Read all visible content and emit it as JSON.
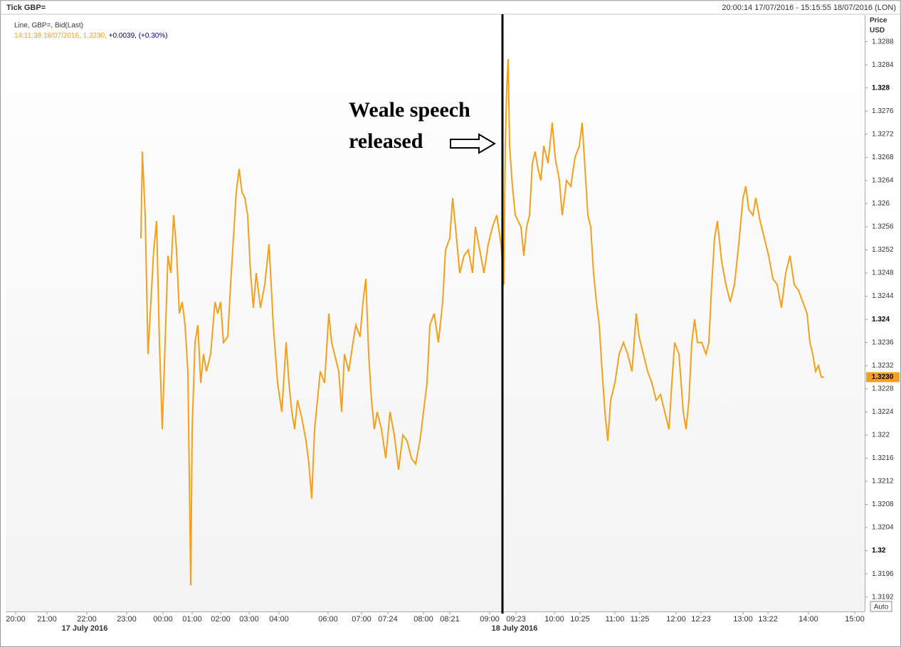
{
  "chart_data": {
    "type": "line",
    "title": "Tick GBP=",
    "subtitle": "20:00:14 17/07/2016 - 15:15:55 18/07/2016 (LON)",
    "y_label": [
      "Price",
      "USD"
    ],
    "info_text": "14:11:38 18/07/2016, 1.3230,",
    "change_text": "+0.0039, (+0.30%)",
    "change_color": "#000080",
    "last_price": {
      "value": 1.323,
      "label": "1.3230"
    },
    "button": "Auto",
    "annotation": {
      "text": [
        "Weale speech",
        "released"
      ],
      "x": 698
    },
    "grid": false,
    "xlim": [
      0,
      1207
    ],
    "ylim": [
      1.31895,
      1.32925
    ],
    "yticks": [
      1.3192,
      1.3196,
      1.32,
      1.3204,
      1.3208,
      1.3212,
      1.3216,
      1.322,
      1.3224,
      1.3228,
      1.3232,
      1.3236,
      1.324,
      1.3244,
      1.3248,
      1.3252,
      1.3256,
      1.326,
      1.3264,
      1.3268,
      1.3272,
      1.3276,
      1.328,
      1.3284,
      1.3288
    ],
    "xticks": [
      {
        "value": 14,
        "label": "20:00"
      },
      {
        "value": 58,
        "label": "21:00"
      },
      {
        "value": 114,
        "label": "22:00"
      },
      {
        "value": 170,
        "label": "23:00"
      },
      {
        "value": 221,
        "label": "00:00"
      },
      {
        "value": 262,
        "label": "01:00"
      },
      {
        "value": 302,
        "label": "02:00"
      },
      {
        "value": 342,
        "label": "03:00"
      },
      {
        "value": 384,
        "label": "04:00"
      },
      {
        "value": 453,
        "label": "06:00"
      },
      {
        "value": 500,
        "label": "07:00"
      },
      {
        "value": 537,
        "label": "07:24"
      },
      {
        "value": 587,
        "label": "08:00"
      },
      {
        "value": 624,
        "label": "08:21"
      },
      {
        "value": 680,
        "label": "09:00"
      },
      {
        "value": 717,
        "label": "09:23"
      },
      {
        "value": 771,
        "label": "10:00"
      },
      {
        "value": 807,
        "label": "10:25"
      },
      {
        "value": 856,
        "label": "11:00"
      },
      {
        "value": 891,
        "label": "11:25"
      },
      {
        "value": 942,
        "label": "12:00"
      },
      {
        "value": 977,
        "label": "12:23"
      },
      {
        "value": 1036,
        "label": "13:00"
      },
      {
        "value": 1071,
        "label": "13:22"
      },
      {
        "value": 1128,
        "label": "14:00"
      },
      {
        "value": 1193,
        "label": "15:00"
      }
    ],
    "date_ticks": [
      {
        "value": 111,
        "label": "17 July 2016"
      },
      {
        "value": 715,
        "label": "18 July 2016"
      }
    ],
    "x": [
      190,
      192,
      196,
      200,
      204,
      208,
      212,
      216,
      220,
      224,
      228,
      232,
      236,
      240,
      244,
      248,
      252,
      256,
      260,
      262,
      266,
      270,
      274,
      278,
      282,
      288,
      294,
      298,
      302,
      306,
      312,
      316,
      320,
      324,
      328,
      332,
      336,
      340,
      344,
      348,
      352,
      358,
      364,
      370,
      376,
      382,
      388,
      394,
      398,
      402,
      406,
      410,
      416,
      422,
      426,
      430,
      434,
      438,
      442,
      448,
      454,
      458,
      462,
      468,
      472,
      476,
      482,
      488,
      492,
      498,
      502,
      506,
      510,
      514,
      518,
      522,
      528,
      534,
      540,
      546,
      552,
      558,
      564,
      570,
      576,
      582,
      588,
      592,
      596,
      602,
      608,
      614,
      618,
      624,
      628,
      632,
      638,
      644,
      650,
      656,
      660,
      666,
      672,
      678,
      684,
      690,
      696,
      700,
      702,
      704,
      706,
      708,
      712,
      716,
      720,
      724,
      728,
      732,
      736,
      740,
      744,
      748,
      752,
      756,
      762,
      768,
      772,
      778,
      782,
      788,
      794,
      800,
      806,
      810,
      814,
      818,
      822,
      826,
      830,
      834,
      838,
      842,
      846,
      850,
      856,
      862,
      868,
      874,
      880,
      886,
      890,
      896,
      902,
      908,
      914,
      920,
      926,
      932,
      936,
      940,
      946,
      952,
      956,
      960,
      964,
      968,
      972,
      978,
      984,
      988,
      992,
      996,
      1000,
      1006,
      1012,
      1018,
      1024,
      1030,
      1036,
      1040,
      1044,
      1050,
      1054,
      1060,
      1066,
      1072,
      1078,
      1084,
      1090,
      1096,
      1102,
      1108,
      1114,
      1120,
      1126,
      1130,
      1134,
      1138,
      1142,
      1146,
      1150
    ],
    "series": [
      {
        "name": "Line, GBP=, Bid(Last)",
        "color": "#f5a01a",
        "values": [
          1.3254,
          1.3269,
          1.3258,
          1.3234,
          1.3243,
          1.3252,
          1.3257,
          1.3236,
          1.3221,
          1.3236,
          1.3251,
          1.3248,
          1.3258,
          1.3252,
          1.3241,
          1.3243,
          1.3239,
          1.3231,
          1.3194,
          1.3221,
          1.3236,
          1.3239,
          1.3229,
          1.3234,
          1.3231,
          1.3234,
          1.3243,
          1.3241,
          1.3243,
          1.3236,
          1.3237,
          1.3246,
          1.3254,
          1.3262,
          1.3266,
          1.3262,
          1.3261,
          1.3258,
          1.3248,
          1.3242,
          1.3248,
          1.3242,
          1.3246,
          1.3253,
          1.3239,
          1.3229,
          1.3224,
          1.3236,
          1.3229,
          1.3224,
          1.3221,
          1.3226,
          1.3223,
          1.3219,
          1.3215,
          1.3209,
          1.3221,
          1.3226,
          1.3231,
          1.3229,
          1.3241,
          1.3236,
          1.3234,
          1.3231,
          1.3224,
          1.3234,
          1.3231,
          1.3236,
          1.3239,
          1.3237,
          1.3243,
          1.3247,
          1.3234,
          1.3226,
          1.3221,
          1.3224,
          1.3221,
          1.3216,
          1.3224,
          1.322,
          1.3214,
          1.322,
          1.3219,
          1.3216,
          1.3215,
          1.3219,
          1.3225,
          1.3229,
          1.3239,
          1.3241,
          1.3236,
          1.3243,
          1.3252,
          1.3254,
          1.3261,
          1.3256,
          1.3248,
          1.3251,
          1.3252,
          1.3248,
          1.3256,
          1.3252,
          1.3248,
          1.3253,
          1.3256,
          1.3258,
          1.3253,
          1.3246,
          1.327,
          1.328,
          1.3285,
          1.327,
          1.3263,
          1.3258,
          1.3257,
          1.3256,
          1.3251,
          1.3256,
          1.3258,
          1.3267,
          1.3269,
          1.3266,
          1.3264,
          1.327,
          1.3267,
          1.3274,
          1.3268,
          1.3264,
          1.3258,
          1.3264,
          1.3263,
          1.3268,
          1.327,
          1.3274,
          1.3266,
          1.3258,
          1.3256,
          1.3248,
          1.3243,
          1.3239,
          1.3231,
          1.3224,
          1.3219,
          1.3226,
          1.3229,
          1.3234,
          1.3236,
          1.3234,
          1.3231,
          1.3241,
          1.3237,
          1.3234,
          1.3231,
          1.3229,
          1.3226,
          1.3227,
          1.3224,
          1.3221,
          1.3229,
          1.3236,
          1.3234,
          1.3224,
          1.3221,
          1.3226,
          1.3236,
          1.324,
          1.3236,
          1.3236,
          1.3234,
          1.3236,
          1.3246,
          1.3254,
          1.3257,
          1.325,
          1.3246,
          1.3243,
          1.3246,
          1.3253,
          1.3261,
          1.3263,
          1.3259,
          1.3258,
          1.3261,
          1.3257,
          1.3254,
          1.3251,
          1.3247,
          1.3246,
          1.3242,
          1.3248,
          1.3251,
          1.3246,
          1.3245,
          1.3243,
          1.3241,
          1.3236,
          1.3234,
          1.3231,
          1.3232,
          1.323,
          1.323
        ]
      }
    ]
  }
}
